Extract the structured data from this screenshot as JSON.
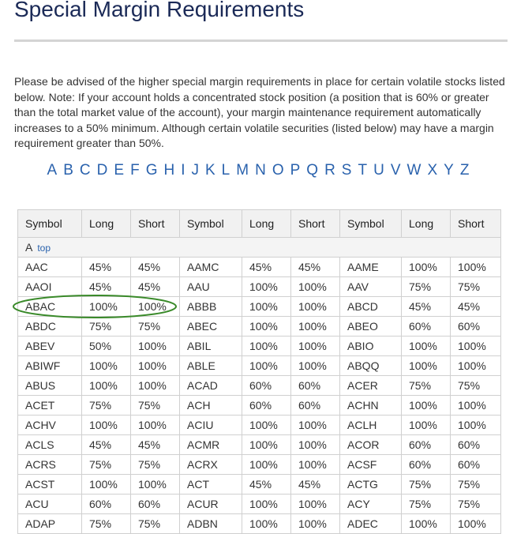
{
  "header": {
    "title": "Special Margin Requirements"
  },
  "intro": "Please be advised of the higher special margin requirements in place for certain volatile stocks listed below. Note: If your account holds a concentrated stock position (a position that is 60% or greater than the total market value of the account), your margin maintenance requirement automatically increases to a 50% minimum. Although certain volatile securities (listed below) may have a margin requirement greater than 50%.",
  "letters": [
    "A",
    "B",
    "C",
    "D",
    "E",
    "F",
    "G",
    "H",
    "I",
    "J",
    "K",
    "L",
    "M",
    "N",
    "O",
    "P",
    "Q",
    "R",
    "S",
    "T",
    "U",
    "V",
    "W",
    "X",
    "Y",
    "Z"
  ],
  "table": {
    "headers": [
      "Symbol",
      "Long",
      "Short",
      "Symbol",
      "Long",
      "Short",
      "Symbol",
      "Long",
      "Short"
    ],
    "section": {
      "label": "A",
      "link": "top"
    },
    "rows": [
      [
        "AAC",
        "45%",
        "45%",
        "AAMC",
        "45%",
        "45%",
        "AAME",
        "100%",
        "100%"
      ],
      [
        "AAOI",
        "45%",
        "45%",
        "AAU",
        "100%",
        "100%",
        "AAV",
        "75%",
        "75%"
      ],
      [
        "ABAC",
        "100%",
        "100%",
        "ABBB",
        "100%",
        "100%",
        "ABCD",
        "45%",
        "45%"
      ],
      [
        "ABDC",
        "75%",
        "75%",
        "ABEC",
        "100%",
        "100%",
        "ABEO",
        "60%",
        "60%"
      ],
      [
        "ABEV",
        "50%",
        "100%",
        "ABIL",
        "100%",
        "100%",
        "ABIO",
        "100%",
        "100%"
      ],
      [
        "ABIWF",
        "100%",
        "100%",
        "ABLE",
        "100%",
        "100%",
        "ABQQ",
        "100%",
        "100%"
      ],
      [
        "ABUS",
        "100%",
        "100%",
        "ACAD",
        "60%",
        "60%",
        "ACER",
        "75%",
        "75%"
      ],
      [
        "ACET",
        "75%",
        "75%",
        "ACH",
        "60%",
        "60%",
        "ACHN",
        "100%",
        "100%"
      ],
      [
        "ACHV",
        "100%",
        "100%",
        "ACIU",
        "100%",
        "100%",
        "ACLH",
        "100%",
        "100%"
      ],
      [
        "ACLS",
        "45%",
        "45%",
        "ACMR",
        "100%",
        "100%",
        "ACOR",
        "60%",
        "60%"
      ],
      [
        "ACRS",
        "75%",
        "75%",
        "ACRX",
        "100%",
        "100%",
        "ACSF",
        "60%",
        "60%"
      ],
      [
        "ACST",
        "100%",
        "100%",
        "ACT",
        "45%",
        "45%",
        "ACTG",
        "75%",
        "75%"
      ],
      [
        "ACU",
        "60%",
        "60%",
        "ACUR",
        "100%",
        "100%",
        "ACY",
        "75%",
        "75%"
      ],
      [
        "ADAP",
        "75%",
        "75%",
        "ADBN",
        "100%",
        "100%",
        "ADEC",
        "100%",
        "100%"
      ]
    ]
  }
}
